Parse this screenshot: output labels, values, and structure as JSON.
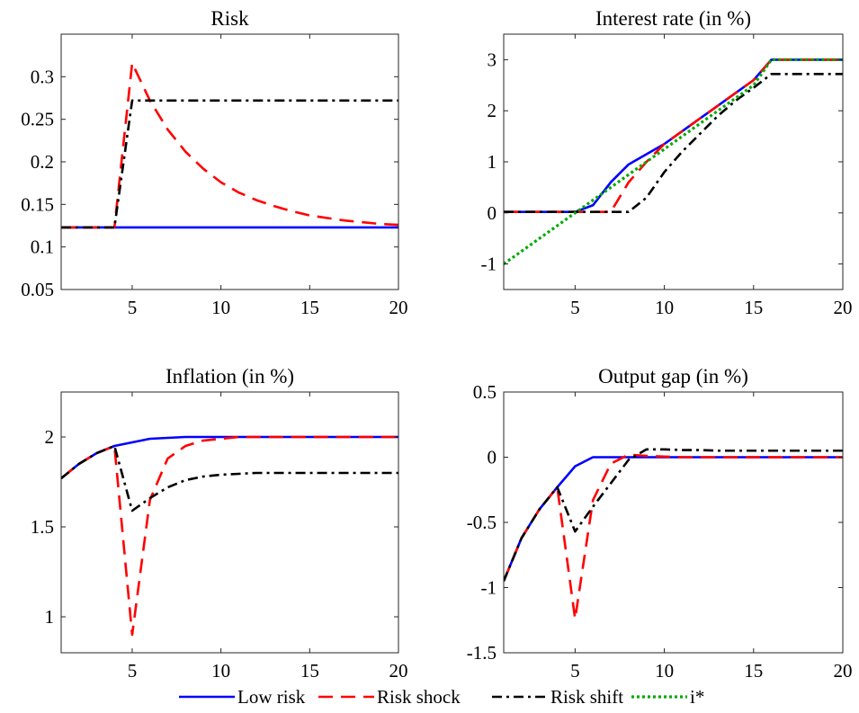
{
  "chart_data": [
    {
      "type": "line",
      "title": "Risk",
      "xlim": [
        1,
        20
      ],
      "ylim": [
        0.05,
        0.35
      ],
      "xticks": [
        5,
        10,
        15,
        20
      ],
      "yticks": [
        0.05,
        0.1,
        0.15,
        0.2,
        0.25,
        0.3
      ],
      "ytick_labels": [
        "0.05",
        "0.1",
        "0.15",
        "0.2",
        "0.25",
        "0.3"
      ],
      "x": [
        1,
        2,
        3,
        4,
        5,
        6,
        7,
        8,
        9,
        10,
        11,
        12,
        13,
        14,
        15,
        16,
        17,
        18,
        19,
        20
      ],
      "series": [
        {
          "name": "Low risk",
          "values": [
            0.123,
            0.123,
            0.123,
            0.123,
            0.123,
            0.123,
            0.123,
            0.123,
            0.123,
            0.123,
            0.123,
            0.123,
            0.123,
            0.123,
            0.123,
            0.123,
            0.123,
            0.123,
            0.123,
            0.123
          ]
        },
        {
          "name": "Risk shock",
          "values": [
            0.123,
            0.123,
            0.123,
            0.123,
            0.316,
            0.272,
            0.238,
            0.212,
            0.192,
            0.176,
            0.164,
            0.155,
            0.148,
            0.142,
            0.137,
            0.134,
            0.131,
            0.129,
            0.127,
            0.126
          ]
        },
        {
          "name": "Risk shift",
          "values": [
            0.123,
            0.123,
            0.123,
            0.123,
            0.272,
            0.272,
            0.272,
            0.272,
            0.272,
            0.272,
            0.272,
            0.272,
            0.272,
            0.272,
            0.272,
            0.272,
            0.272,
            0.272,
            0.272,
            0.272
          ]
        }
      ]
    },
    {
      "type": "line",
      "title": "Interest rate (in %)",
      "xlim": [
        1,
        20
      ],
      "ylim": [
        -1.5,
        3.5
      ],
      "xticks": [
        5,
        10,
        15,
        20
      ],
      "yticks": [
        -1,
        0,
        1,
        2,
        3
      ],
      "ytick_labels": [
        "-1",
        "0",
        "1",
        "2",
        "3"
      ],
      "x": [
        1,
        2,
        3,
        4,
        5,
        6,
        7,
        8,
        9,
        10,
        11,
        12,
        13,
        14,
        15,
        16,
        17,
        18,
        19,
        20
      ],
      "series": [
        {
          "name": "Low risk",
          "values": [
            0.02,
            0.02,
            0.02,
            0.02,
            0.02,
            0.15,
            0.6,
            0.95,
            1.15,
            1.35,
            1.6,
            1.85,
            2.1,
            2.35,
            2.6,
            3.0,
            3.0,
            3.0,
            3.0,
            3.0
          ]
        },
        {
          "name": "Risk shock",
          "values": [
            0.02,
            0.02,
            0.02,
            0.02,
            0.02,
            0.02,
            0.02,
            0.6,
            1.0,
            1.35,
            1.6,
            1.85,
            2.1,
            2.35,
            2.6,
            3.0,
            3.0,
            3.0,
            3.0,
            3.0
          ]
        },
        {
          "name": "Risk shift",
          "values": [
            0.02,
            0.02,
            0.02,
            0.02,
            0.02,
            0.02,
            0.02,
            0.02,
            0.3,
            0.8,
            1.2,
            1.55,
            1.9,
            2.2,
            2.45,
            2.72,
            2.72,
            2.72,
            2.72,
            2.72
          ]
        },
        {
          "name": "i*",
          "values": [
            -1.0,
            -0.75,
            -0.5,
            -0.25,
            0.0,
            0.25,
            0.5,
            0.75,
            1.0,
            1.25,
            1.5,
            1.75,
            2.0,
            2.25,
            2.5,
            3.0,
            3.0,
            3.0,
            3.0,
            3.0
          ]
        }
      ]
    },
    {
      "type": "line",
      "title": "Inflation (in %)",
      "xlim": [
        1,
        20
      ],
      "ylim": [
        0.8,
        2.25
      ],
      "xticks": [
        5,
        10,
        15,
        20
      ],
      "yticks": [
        1,
        1.5,
        2
      ],
      "ytick_labels": [
        "1",
        "1.5",
        "2"
      ],
      "x": [
        1,
        2,
        3,
        4,
        5,
        6,
        7,
        8,
        9,
        10,
        11,
        12,
        13,
        14,
        15,
        16,
        17,
        18,
        19,
        20
      ],
      "series": [
        {
          "name": "Low risk",
          "values": [
            1.77,
            1.85,
            1.91,
            1.95,
            1.97,
            1.99,
            1.995,
            2.0,
            2.0,
            2.0,
            2.0,
            2.0,
            2.0,
            2.0,
            2.0,
            2.0,
            2.0,
            2.0,
            2.0,
            2.0
          ]
        },
        {
          "name": "Risk shock",
          "values": [
            1.77,
            1.85,
            1.91,
            1.95,
            0.9,
            1.65,
            1.88,
            1.95,
            1.98,
            1.99,
            2.0,
            2.0,
            2.0,
            2.0,
            2.0,
            2.0,
            2.0,
            2.0,
            2.0,
            2.0
          ]
        },
        {
          "name": "Risk shift",
          "values": [
            1.77,
            1.85,
            1.91,
            1.95,
            1.59,
            1.66,
            1.72,
            1.76,
            1.78,
            1.79,
            1.795,
            1.8,
            1.8,
            1.8,
            1.8,
            1.8,
            1.8,
            1.8,
            1.8,
            1.8
          ]
        }
      ]
    },
    {
      "type": "line",
      "title": "Output gap (in %)",
      "xlim": [
        1,
        20
      ],
      "ylim": [
        -1.5,
        0.5
      ],
      "xticks": [
        5,
        10,
        15,
        20
      ],
      "yticks": [
        -1.5,
        -1,
        -0.5,
        0,
        0.5
      ],
      "ytick_labels": [
        "-1.5",
        "-1",
        "-0.5",
        "0",
        "0.5"
      ],
      "x": [
        1,
        2,
        3,
        4,
        5,
        6,
        7,
        8,
        9,
        10,
        11,
        12,
        13,
        14,
        15,
        16,
        17,
        18,
        19,
        20
      ],
      "series": [
        {
          "name": "Low risk",
          "values": [
            -0.95,
            -0.62,
            -0.4,
            -0.23,
            -0.07,
            0.0,
            0.0,
            0.0,
            0.0,
            0.0,
            0.0,
            0.0,
            0.0,
            0.0,
            0.0,
            0.0,
            0.0,
            0.0,
            0.0,
            0.0
          ]
        },
        {
          "name": "Risk shock",
          "values": [
            -0.95,
            -0.62,
            -0.4,
            -0.23,
            -1.24,
            -0.33,
            -0.05,
            0.02,
            0.01,
            0.005,
            0.0,
            0.0,
            0.0,
            0.0,
            0.0,
            0.0,
            0.0,
            0.0,
            0.0,
            0.0
          ]
        },
        {
          "name": "Risk shift",
          "values": [
            -0.95,
            -0.62,
            -0.4,
            -0.23,
            -0.57,
            -0.38,
            -0.2,
            -0.02,
            0.06,
            0.06,
            0.055,
            0.055,
            0.05,
            0.05,
            0.05,
            0.05,
            0.05,
            0.05,
            0.05,
            0.05
          ]
        }
      ]
    }
  ],
  "legend": {
    "placement": "bottom",
    "entries": [
      {
        "label": "Low risk",
        "color": "#0000ff",
        "style": "solid"
      },
      {
        "label": "Risk shock",
        "color": "#ff0000",
        "style": "dashed"
      },
      {
        "label": "Risk shift",
        "color": "#000000",
        "style": "dashdot"
      },
      {
        "label": "i*",
        "color": "#00aa00",
        "style": "dotted"
      }
    ]
  }
}
